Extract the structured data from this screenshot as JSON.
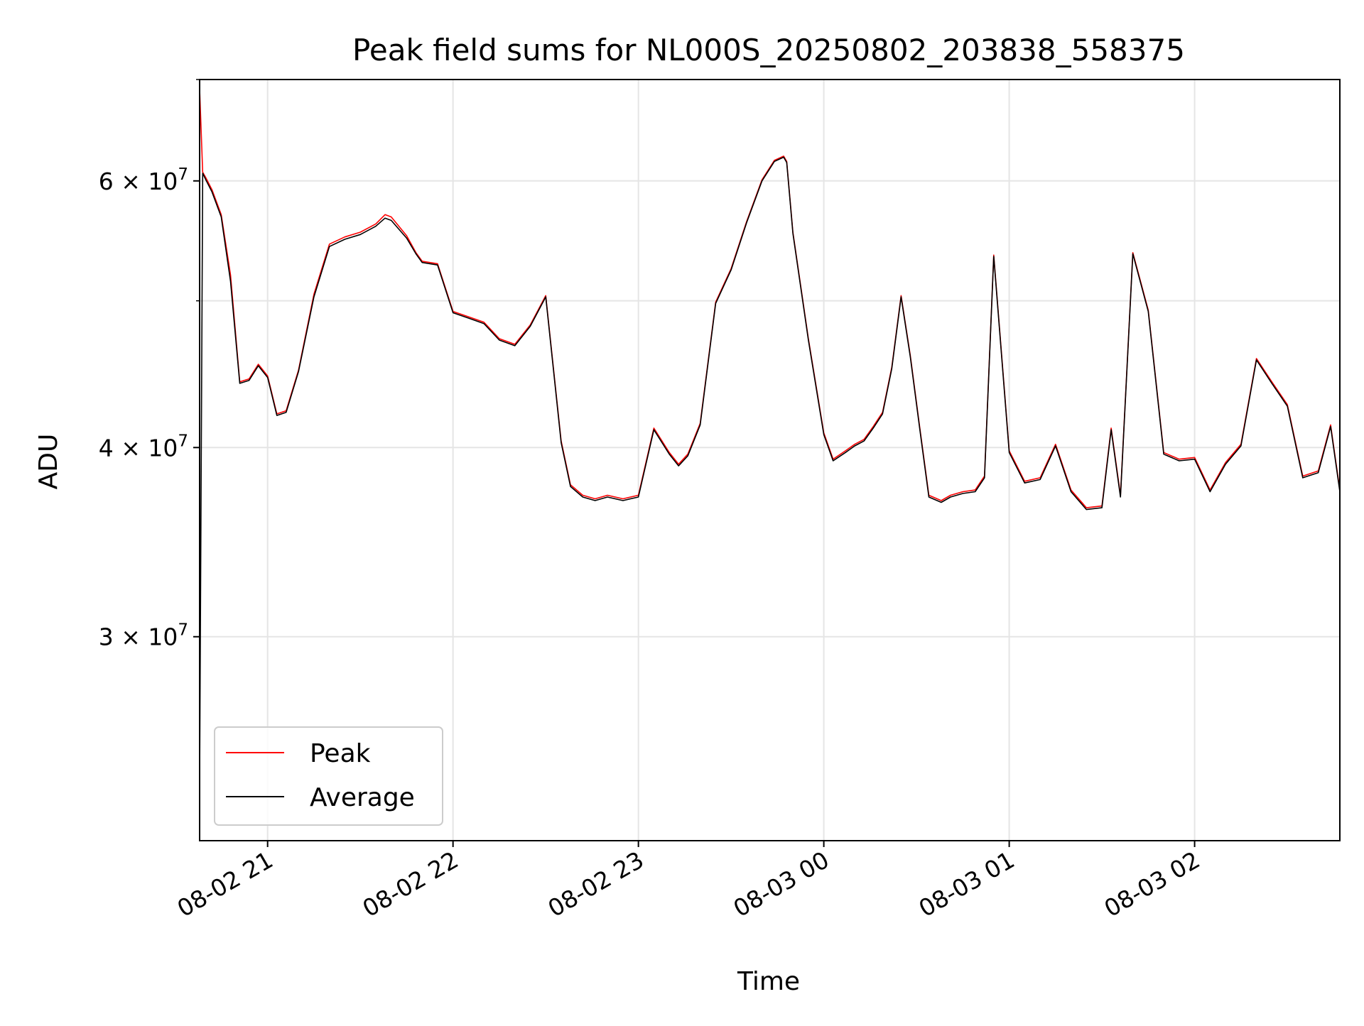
{
  "chart_data": {
    "type": "line",
    "title": "Peak field sums for NL000S_20250802_203838_558375",
    "xlabel": "Time",
    "ylabel": "ADU",
    "yscale": "log",
    "ylim": [
      22000000,
      70000000
    ],
    "xlim": [
      "2025-08-02 20:38",
      "2025-08-03 02:47"
    ],
    "grid": true,
    "legend_position": "lower-left",
    "x_ticks": [
      {
        "value": "2025-08-02 21:00",
        "label": "08-02 21"
      },
      {
        "value": "2025-08-02 22:00",
        "label": "08-02 22"
      },
      {
        "value": "2025-08-02 23:00",
        "label": "08-02 23"
      },
      {
        "value": "2025-08-03 00:00",
        "label": "08-03 00"
      },
      {
        "value": "2025-08-03 01:00",
        "label": "08-03 01"
      },
      {
        "value": "2025-08-03 02:00",
        "label": "08-03 02"
      }
    ],
    "y_ticks": [
      {
        "value": 30000000,
        "mantissa": "3",
        "exponent": "7"
      },
      {
        "value": 40000000,
        "mantissa": "4",
        "exponent": "7"
      },
      {
        "value": 60000000,
        "mantissa": "6",
        "exponent": "7"
      }
    ],
    "y_minor_ticks": [
      50000000,
      70000000
    ],
    "times_sample": [
      "2025-08-02 20:38",
      "2025-08-02 20:39",
      "2025-08-02 20:40",
      "2025-08-02 20:42",
      "2025-08-02 20:45",
      "2025-08-02 20:48",
      "2025-08-02 20:51",
      "2025-08-02 20:54",
      "2025-08-02 20:57",
      "2025-08-02 21:00",
      "2025-08-02 21:03",
      "2025-08-02 21:06",
      "2025-08-02 21:10",
      "2025-08-02 21:15",
      "2025-08-02 21:20",
      "2025-08-02 21:25",
      "2025-08-02 21:30",
      "2025-08-02 21:35",
      "2025-08-02 21:38",
      "2025-08-02 21:40",
      "2025-08-02 21:45",
      "2025-08-02 21:48",
      "2025-08-02 21:50",
      "2025-08-02 21:55",
      "2025-08-02 22:00",
      "2025-08-02 22:05",
      "2025-08-02 22:10",
      "2025-08-02 22:15",
      "2025-08-02 22:20",
      "2025-08-02 22:25",
      "2025-08-02 22:30",
      "2025-08-02 22:35",
      "2025-08-02 22:38",
      "2025-08-02 22:42",
      "2025-08-02 22:46",
      "2025-08-02 22:50",
      "2025-08-02 22:55",
      "2025-08-02 23:00",
      "2025-08-02 23:05",
      "2025-08-02 23:10",
      "2025-08-02 23:13",
      "2025-08-02 23:16",
      "2025-08-02 23:20",
      "2025-08-02 23:25",
      "2025-08-02 23:30",
      "2025-08-02 23:35",
      "2025-08-02 23:40",
      "2025-08-02 23:44",
      "2025-08-02 23:47",
      "2025-08-02 23:48",
      "2025-08-02 23:50",
      "2025-08-02 23:55",
      "2025-08-03 00:00",
      "2025-08-03 00:03",
      "2025-08-03 00:07",
      "2025-08-03 00:10",
      "2025-08-03 00:13",
      "2025-08-03 00:16",
      "2025-08-03 00:19",
      "2025-08-03 00:22",
      "2025-08-03 00:25",
      "2025-08-03 00:28",
      "2025-08-03 00:31",
      "2025-08-03 00:34",
      "2025-08-03 00:38",
      "2025-08-03 00:41",
      "2025-08-03 00:45",
      "2025-08-03 00:49",
      "2025-08-03 00:52",
      "2025-08-03 00:55",
      "2025-08-03 01:00",
      "2025-08-03 01:05",
      "2025-08-03 01:10",
      "2025-08-03 01:15",
      "2025-08-03 01:20",
      "2025-08-03 01:25",
      "2025-08-03 01:30",
      "2025-08-03 01:33",
      "2025-08-03 01:36",
      "2025-08-03 01:40",
      "2025-08-03 01:45",
      "2025-08-03 01:50",
      "2025-08-03 01:55",
      "2025-08-03 02:00",
      "2025-08-03 02:05",
      "2025-08-03 02:10",
      "2025-08-03 02:15",
      "2025-08-03 02:20",
      "2025-08-03 02:25",
      "2025-08-03 02:30",
      "2025-08-03 02:35",
      "2025-08-03 02:40",
      "2025-08-03 02:44",
      "2025-08-03 02:47"
    ],
    "series": [
      {
        "name": "Peak",
        "color": "#ff0000",
        "values": [
          69000000,
          60800000,
          60300000,
          59200000,
          57000000,
          52000000,
          44200000,
          44400000,
          45400000,
          44600000,
          42100000,
          42300000,
          45000000,
          50500000,
          54500000,
          55100000,
          55500000,
          56200000,
          57000000,
          56800000,
          55200000,
          53800000,
          53100000,
          52900000,
          49200000,
          48800000,
          48400000,
          47200000,
          46800000,
          48200000,
          50400000,
          40400000,
          37800000,
          37200000,
          37000000,
          37200000,
          37000000,
          37200000,
          41200000,
          39700000,
          39000000,
          39600000,
          41500000,
          49900000,
          52500000,
          56400000,
          60100000,
          61900000,
          62300000,
          61800000,
          55500000,
          47200000,
          40900000,
          39300000,
          39800000,
          40200000,
          40500000,
          41300000,
          42200000,
          45200000,
          50400000,
          46000000,
          41300000,
          37200000,
          36900000,
          37200000,
          37400000,
          37500000,
          38300000,
          53600000,
          39800000,
          38000000,
          38200000,
          40200000,
          37500000,
          36500000,
          36600000,
          41200000,
          37200000,
          53800000,
          49300000,
          39700000,
          39300000,
          39400000,
          37500000,
          39100000,
          40200000,
          45800000,
          44200000,
          42700000,
          38300000,
          38600000,
          41400000,
          37500000
        ]
      },
      {
        "name": "Average",
        "color": "#000000",
        "values": [
          24000000,
          60700000,
          60100000,
          59000000,
          56800000,
          51500000,
          44100000,
          44300000,
          45300000,
          44500000,
          42000000,
          42200000,
          44900000,
          50300000,
          54300000,
          54900000,
          55300000,
          56000000,
          56700000,
          56500000,
          55000000,
          53700000,
          53000000,
          52800000,
          49100000,
          48700000,
          48300000,
          47100000,
          46700000,
          48100000,
          50300000,
          40300000,
          37700000,
          37100000,
          36900000,
          37100000,
          36900000,
          37100000,
          41100000,
          39600000,
          38900000,
          39500000,
          41400000,
          49800000,
          52400000,
          56300000,
          60000000,
          61800000,
          62200000,
          61700000,
          55400000,
          47100000,
          40800000,
          39200000,
          39700000,
          40100000,
          40400000,
          41200000,
          42100000,
          45100000,
          50300000,
          45900000,
          41200000,
          37100000,
          36800000,
          37100000,
          37300000,
          37400000,
          38200000,
          53500000,
          39700000,
          37900000,
          38100000,
          40100000,
          37400000,
          36400000,
          36500000,
          41100000,
          37100000,
          53700000,
          49200000,
          39600000,
          39200000,
          39300000,
          37400000,
          39000000,
          40100000,
          45700000,
          44100000,
          42600000,
          38200000,
          38500000,
          41300000,
          37400000
        ]
      }
    ]
  }
}
